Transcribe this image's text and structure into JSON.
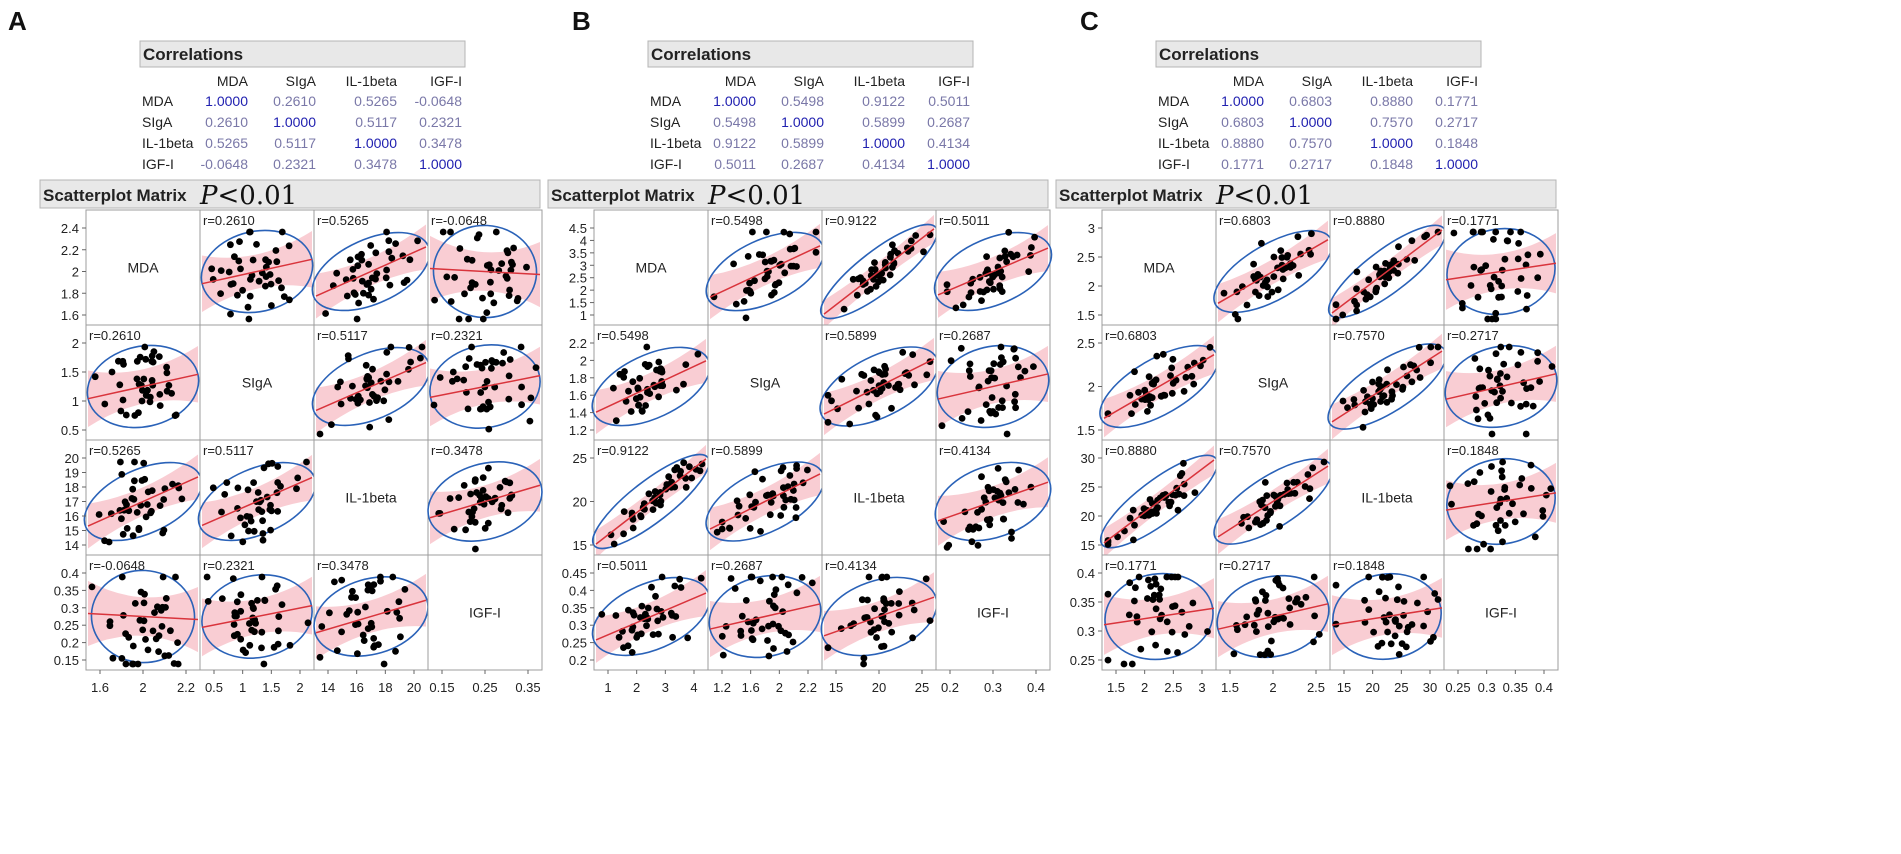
{
  "colors": {
    "header_bg": "#e8e8e8",
    "header_border": "#b4b4b4",
    "cell_border": "#9c9c9c",
    "diag_value": "#2020b0",
    "offdiag_value": "#7a78a8",
    "ellipse": "#2a62b8",
    "fit_line": "#d9343c",
    "band": "#f6b8c0",
    "point": "#000000"
  },
  "common": {
    "correlations_title": "Correlations",
    "scatter_title": "Scatterplot Matrix",
    "p_italic": "P",
    "p_rest": "<0.01",
    "variables": [
      "MDA",
      "SIgA",
      "IL-1beta",
      "IGF-I"
    ],
    "diag_text": "1.0000"
  },
  "panels": [
    {
      "letter": "A",
      "corr_table": [
        [
          "1.0000",
          "0.2610",
          "0.5265",
          "-0.0648"
        ],
        [
          "0.2610",
          "1.0000",
          "0.5117",
          "0.2321"
        ],
        [
          "0.5265",
          "0.5117",
          "1.0000",
          "0.3478"
        ],
        [
          "-0.0648",
          "0.2321",
          "0.3478",
          "1.0000"
        ]
      ],
      "r_labels": [
        [
          "",
          "r=0.2610",
          "r=0.5265",
          "r=-0.0648"
        ],
        [
          "r=0.2610",
          "",
          "r=0.5117",
          "r=0.2321"
        ],
        [
          "r=0.5265",
          "r=0.5117",
          "",
          "r=0.3478"
        ],
        [
          "r=-0.0648",
          "r=0.2321",
          "r=0.3478",
          ""
        ]
      ],
      "y_ticks": [
        [
          "1.6",
          "1.8",
          "2",
          "2.2",
          "2.4"
        ],
        [
          "0.5",
          "1",
          "1.5",
          "2"
        ],
        [
          "14",
          "15",
          "16",
          "17",
          "18",
          "19",
          "20"
        ],
        [
          "0.15",
          "0.2",
          "0.25",
          "0.3",
          "0.35",
          "0.4"
        ]
      ],
      "x_ticks": [
        [
          "1.6",
          "2",
          "2.2"
        ],
        [
          "0.5",
          "1",
          "1.5",
          "2"
        ],
        [
          "14",
          "16",
          "18",
          "20"
        ],
        [
          "0.15",
          "0.25",
          "0.35"
        ]
      ]
    },
    {
      "letter": "B",
      "corr_table": [
        [
          "1.0000",
          "0.5498",
          "0.9122",
          "0.5011"
        ],
        [
          "0.5498",
          "1.0000",
          "0.5899",
          "0.2687"
        ],
        [
          "0.9122",
          "0.5899",
          "1.0000",
          "0.4134"
        ],
        [
          "0.5011",
          "0.2687",
          "0.4134",
          "1.0000"
        ]
      ],
      "r_labels": [
        [
          "",
          "r=0.5498",
          "r=0.9122",
          "r=0.5011"
        ],
        [
          "r=0.5498",
          "",
          "r=0.5899",
          "r=0.2687"
        ],
        [
          "r=0.9122",
          "r=0.5899",
          "",
          "r=0.4134"
        ],
        [
          "r=0.5011",
          "r=0.2687",
          "r=0.4134",
          ""
        ]
      ],
      "y_ticks": [
        [
          "1",
          "1.5",
          "2",
          "2.5",
          "3",
          "3.5",
          "4",
          "4.5"
        ],
        [
          "1.2",
          "1.4",
          "1.6",
          "1.8",
          "2",
          "2.2"
        ],
        [
          "15",
          "20",
          "25"
        ],
        [
          "0.2",
          "0.25",
          "0.3",
          "0.35",
          "0.4",
          "0.45"
        ]
      ],
      "x_ticks": [
        [
          "1",
          "2",
          "3",
          "4"
        ],
        [
          "1.2",
          "1.6",
          "2",
          "2.2"
        ],
        [
          "15",
          "20",
          "25"
        ],
        [
          "0.2",
          "0.3",
          "0.4"
        ]
      ]
    },
    {
      "letter": "C",
      "corr_table": [
        [
          "1.0000",
          "0.6803",
          "0.8880",
          "0.1771"
        ],
        [
          "0.6803",
          "1.0000",
          "0.7570",
          "0.2717"
        ],
        [
          "0.8880",
          "0.7570",
          "1.0000",
          "0.1848"
        ],
        [
          "0.1771",
          "0.2717",
          "0.1848",
          "1.0000"
        ]
      ],
      "r_labels": [
        [
          "",
          "r=0.6803",
          "r=0.8880",
          "r=0.1771"
        ],
        [
          "r=0.6803",
          "",
          "r=0.7570",
          "r=0.2717"
        ],
        [
          "r=0.8880",
          "r=0.7570",
          "",
          "r=0.1848"
        ],
        [
          "r=0.1771",
          "r=0.2717",
          "r=0.1848",
          ""
        ]
      ],
      "y_ticks": [
        [
          "1.5",
          "2",
          "2.5",
          "3"
        ],
        [
          "1.5",
          "2",
          "2.5"
        ],
        [
          "15",
          "20",
          "25",
          "30"
        ],
        [
          "0.25",
          "0.3",
          "0.35",
          "0.4"
        ]
      ],
      "x_ticks": [
        [
          "1.5",
          "2",
          "2.5",
          "3"
        ],
        [
          "1.5",
          "2",
          "2.5"
        ],
        [
          "15",
          "20",
          "25",
          "30"
        ],
        [
          "0.25",
          "0.3",
          "0.35",
          "0.4"
        ]
      ]
    }
  ],
  "chart_data": [
    {
      "type": "scatter",
      "title": "Scatterplot Matrix (P<0.01)",
      "panel": "A",
      "variables": [
        "MDA",
        "SIgA",
        "IL-1beta",
        "IGF-I"
      ],
      "correlations": [
        [
          1.0,
          0.261,
          0.5265,
          -0.0648
        ],
        [
          0.261,
          1.0,
          0.5117,
          0.2321
        ],
        [
          0.5265,
          0.5117,
          1.0,
          0.3478
        ],
        [
          -0.0648,
          0.2321,
          0.3478,
          1.0
        ]
      ],
      "axis_ranges": {
        "MDA": [
          1.5,
          2.5
        ],
        "SIgA": [
          0.4,
          2.2
        ],
        "IL-1beta": [
          13.8,
          20.8
        ],
        "IGF-I": [
          0.13,
          0.45
        ]
      }
    },
    {
      "type": "scatter",
      "title": "Scatterplot Matrix (P<0.01)",
      "panel": "B",
      "variables": [
        "MDA",
        "SIgA",
        "IL-1beta",
        "IGF-I"
      ],
      "correlations": [
        [
          1.0,
          0.5498,
          0.9122,
          0.5011
        ],
        [
          0.5498,
          1.0,
          0.5899,
          0.2687
        ],
        [
          0.9122,
          0.5899,
          1.0,
          0.4134
        ],
        [
          0.5011,
          0.2687,
          0.4134,
          1.0
        ]
      ],
      "axis_ranges": {
        "MDA": [
          0.8,
          4.8
        ],
        "SIgA": [
          1.15,
          2.35
        ],
        "IL-1beta": [
          12.5,
          30.0
        ],
        "IGF-I": [
          0.19,
          0.49
        ]
      }
    },
    {
      "type": "scatter",
      "title": "Scatterplot Matrix (P<0.01)",
      "panel": "C",
      "variables": [
        "MDA",
        "SIgA",
        "IL-1beta",
        "IGF-I"
      ],
      "correlations": [
        [
          1.0,
          0.6803,
          0.888,
          0.1771
        ],
        [
          0.6803,
          1.0,
          0.757,
          0.2717
        ],
        [
          0.888,
          0.757,
          1.0,
          0.1848
        ],
        [
          0.1771,
          0.2717,
          0.1848,
          1.0
        ]
      ],
      "axis_ranges": {
        "MDA": [
          1.3,
          3.5
        ],
        "SIgA": [
          1.3,
          3.1
        ],
        "IL-1beta": [
          13.0,
          31.5
        ],
        "IGF-I": [
          0.23,
          0.42
        ]
      }
    }
  ]
}
